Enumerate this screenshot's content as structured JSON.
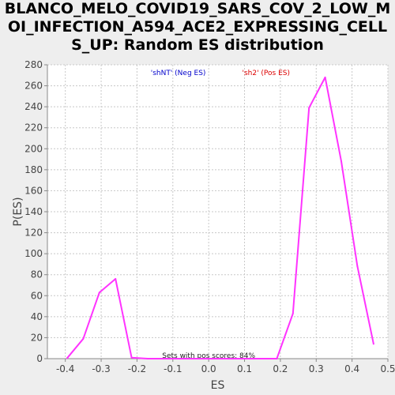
{
  "chart_data": {
    "type": "line",
    "title_lines": [
      "BLANCO_MELO_COVID19_SARS_COV_2_LOW_M",
      "OI_INFECTION_A594_ACE2_EXPRESSING_CELL",
      "S_UP: Random ES distribution"
    ],
    "xlabel": "ES",
    "ylabel": "P(ES)",
    "xlim": [
      -0.45,
      0.5
    ],
    "ylim": [
      0,
      280
    ],
    "xticks": [
      -0.4,
      -0.3,
      -0.2,
      -0.1,
      0.0,
      0.1,
      0.2,
      0.3,
      0.4,
      0.5
    ],
    "xtick_labels": [
      "-0.4",
      "-0.3",
      "-0.2",
      "-0.1",
      "0.0",
      "0.1",
      "0.2",
      "0.3",
      "0.4",
      "0.5"
    ],
    "yticks": [
      0,
      20,
      40,
      60,
      80,
      100,
      120,
      140,
      160,
      180,
      200,
      220,
      240,
      260,
      280
    ],
    "grid": true,
    "legend": [
      {
        "label": "'shNT' (Neg ES)",
        "color": "#0000cc"
      },
      {
        "label": "'sh2' (Pos ES)",
        "color": "#dd0000"
      }
    ],
    "annotation": "Sets with pos scores: 84%",
    "line_color": "#ff33ff",
    "series": [
      {
        "x": [
          -0.395,
          -0.35,
          -0.305,
          -0.26,
          -0.215,
          -0.17,
          -0.125,
          -0.08,
          -0.035,
          0.01,
          0.055,
          0.1,
          0.145,
          0.19,
          0.235,
          0.28,
          0.325,
          0.37,
          0.415,
          0.46
        ],
        "y": [
          0.5,
          19,
          63,
          76,
          1,
          0,
          0,
          0,
          0,
          0,
          0,
          0,
          0,
          0,
          43,
          239,
          268,
          188,
          88,
          14
        ]
      }
    ]
  }
}
